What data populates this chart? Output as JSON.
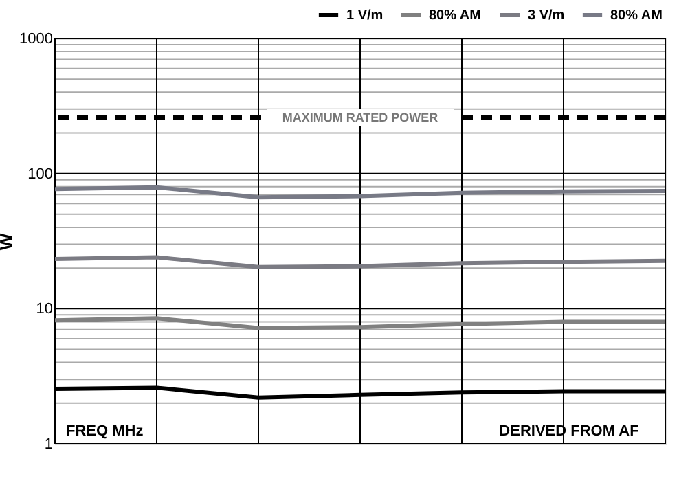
{
  "chart_data": {
    "type": "line",
    "xlabel": "FREQ MHz",
    "ylabel": "W",
    "categories": [
      null,
      null,
      null,
      null,
      null,
      null,
      null
    ],
    "series": [
      {
        "name": "1 V/m",
        "color": "#000000",
        "values": [
          2.55,
          2.6,
          2.2,
          2.3,
          2.4,
          2.45,
          2.45
        ]
      },
      {
        "name": "80% AM",
        "color": "#808080",
        "values": [
          8.2,
          8.5,
          7.2,
          7.3,
          7.7,
          8.0,
          8.0
        ]
      },
      {
        "name": "3 V/m",
        "color": "#7b7b83",
        "values": [
          23.3,
          24,
          20.3,
          20.6,
          21.7,
          22.2,
          22.6
        ]
      },
      {
        "name": "80% AM",
        "color": "#787a86",
        "values": [
          76.8,
          79,
          66.7,
          68,
          72,
          73.6,
          74.3
        ]
      }
    ],
    "log": "y",
    "ylim": [
      1,
      1000
    ],
    "yticks": [
      1,
      {
        "value": 2,
        "label": null
      },
      {
        "value": 3,
        "label": null
      },
      {
        "value": 4,
        "label": null
      },
      {
        "value": 5,
        "label": null
      },
      {
        "value": 6,
        "label": null
      },
      {
        "value": 7,
        "label": null
      },
      {
        "value": 8,
        "label": null
      },
      {
        "value": 9,
        "label": null
      },
      10,
      {
        "value": 20,
        "label": null
      },
      {
        "value": 30,
        "label": null
      },
      {
        "value": 40,
        "label": null
      },
      {
        "value": 50,
        "label": null
      },
      {
        "value": 60,
        "label": null
      },
      {
        "value": 70,
        "label": null
      },
      {
        "value": 80,
        "label": null
      },
      {
        "value": 90,
        "label": null
      },
      100,
      {
        "value": 200,
        "label": null
      },
      {
        "value": 300,
        "label": null
      },
      {
        "value": 400,
        "label": null
      },
      {
        "value": 500,
        "label": null
      },
      {
        "value": 600,
        "label": null
      },
      {
        "value": 700,
        "label": null
      },
      {
        "value": 800,
        "label": null
      },
      {
        "value": 900,
        "label": null
      },
      1000
    ],
    "ref_lines": [
      {
        "axis": "y",
        "value": 260,
        "label": "MAXIMUM RATED POWER",
        "color": "#000000",
        "line_style": "dashed"
      }
    ],
    "annotations": [
      "DERIVED FROM AF"
    ],
    "grid": true,
    "legend": "top right",
    "marker": "none",
    "line_style": "solid"
  }
}
